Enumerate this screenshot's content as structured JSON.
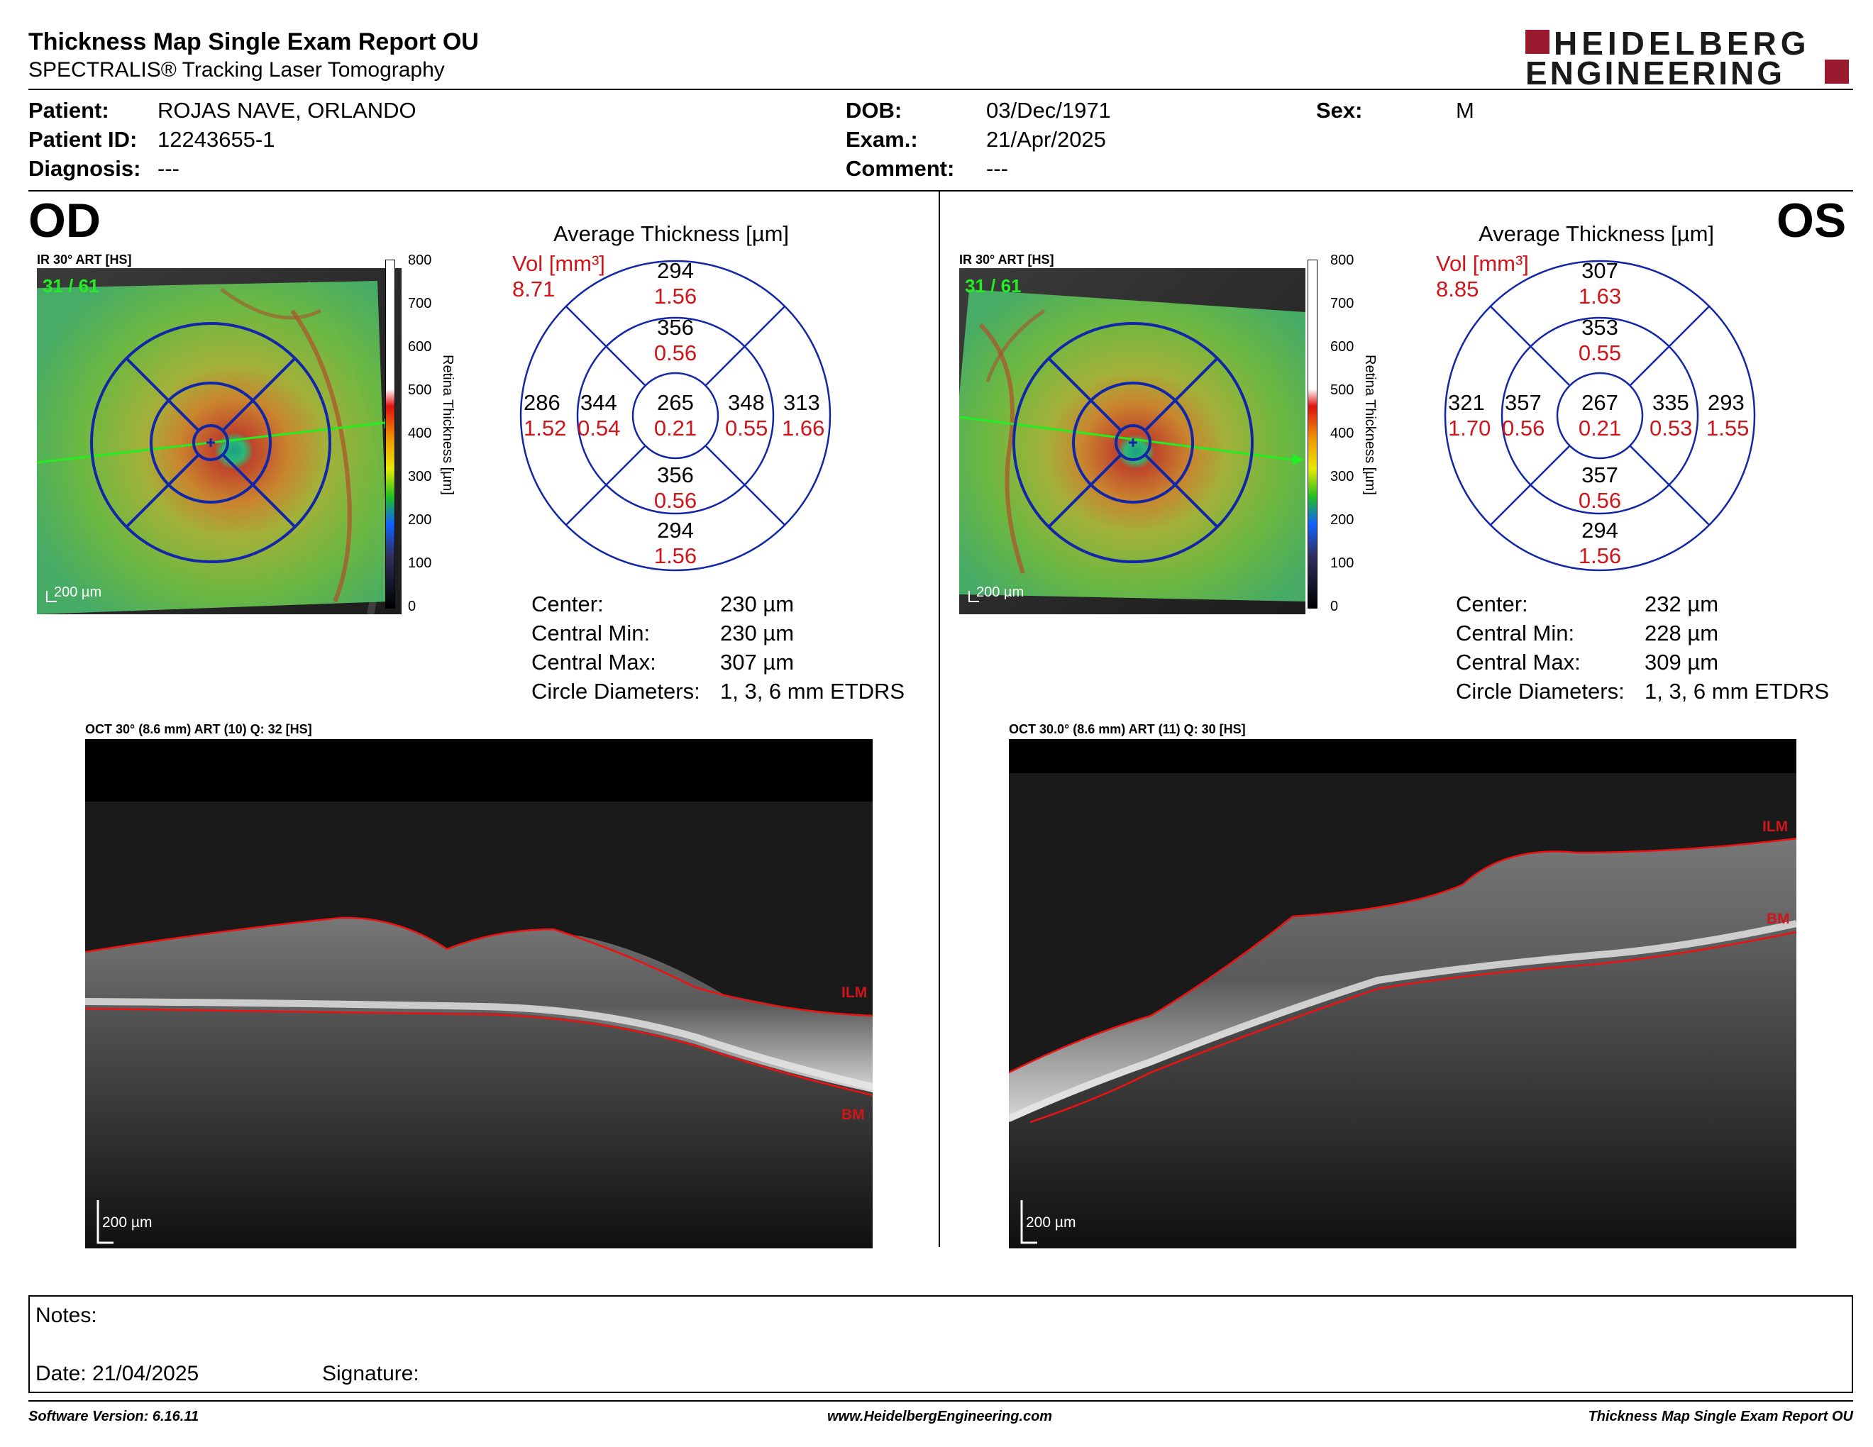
{
  "report": {
    "title": "Thickness Map Single Exam Report OU",
    "subtitle": "SPECTRALIS® Tracking Laser Tomography",
    "logo_line1": "HEIDELBERG",
    "logo_line2": "ENGINEERING",
    "brand_color": "#9a1b2f"
  },
  "patient": {
    "patient_label": "Patient:",
    "patient_value": "ROJAS NAVE, ORLANDO",
    "id_label": "Patient ID:",
    "id_value": "12243655-1",
    "diagnosis_label": "Diagnosis:",
    "diagnosis_value": "---",
    "dob_label": "DOB:",
    "dob_value": "03/Dec/1971",
    "exam_label": "Exam.:",
    "exam_value": "21/Apr/2025",
    "comment_label": "Comment:",
    "comment_value": "---",
    "sex_label": "Sex:",
    "sex_value": "M"
  },
  "colorbar": {
    "ticks": [
      "800",
      "700",
      "600",
      "500",
      "400",
      "300",
      "200",
      "100",
      "0"
    ],
    "label": "Retina Thickness [µm]"
  },
  "od": {
    "eye": "OD",
    "ir_label": "IR 30° ART [HS]",
    "frame_count": "31 / 61",
    "scale": "200 µm",
    "grid_title": "Average Thickness [µm]",
    "vol_label": "Vol [mm³]",
    "vol_value": "8.71",
    "grid": {
      "center_t": "265",
      "center_v": "0.21",
      "inner_sup_t": "356",
      "inner_sup_v": "0.56",
      "inner_inf_t": "356",
      "inner_inf_v": "0.56",
      "inner_left_t": "344",
      "inner_left_v": "0.54",
      "inner_right_t": "348",
      "inner_right_v": "0.55",
      "outer_sup_t": "294",
      "outer_sup_v": "1.56",
      "outer_inf_t": "294",
      "outer_inf_v": "1.56",
      "outer_left_t": "286",
      "outer_left_v": "1.52",
      "outer_right_t": "313",
      "outer_right_v": "1.66"
    },
    "stats": {
      "center_label": "Center:",
      "center_value": "230 µm",
      "min_label": "Central Min:",
      "min_value": "230 µm",
      "max_label": "Central Max:",
      "max_value": "307 µm",
      "diam_label": "Circle Diameters:",
      "diam_value": "1, 3, 6 mm ETDRS"
    },
    "oct_label": "OCT 30° (8.6 mm) ART (10) Q: 32 [HS]",
    "ilm": "ILM",
    "bm": "BM",
    "oct_scale": "200 µm"
  },
  "os": {
    "eye": "OS",
    "ir_label": "IR 30° ART [HS]",
    "frame_count": "31 / 61",
    "scale": "200 µm",
    "grid_title": "Average Thickness [µm]",
    "vol_label": "Vol [mm³]",
    "vol_value": "8.85",
    "grid": {
      "center_t": "267",
      "center_v": "0.21",
      "inner_sup_t": "353",
      "inner_sup_v": "0.55",
      "inner_inf_t": "357",
      "inner_inf_v": "0.56",
      "inner_left_t": "357",
      "inner_left_v": "0.56",
      "inner_right_t": "335",
      "inner_right_v": "0.53",
      "outer_sup_t": "307",
      "outer_sup_v": "1.63",
      "outer_inf_t": "294",
      "outer_inf_v": "1.56",
      "outer_left_t": "321",
      "outer_left_v": "1.70",
      "outer_right_t": "293",
      "outer_right_v": "1.55"
    },
    "stats": {
      "center_label": "Center:",
      "center_value": "232 µm",
      "min_label": "Central Min:",
      "min_value": "228 µm",
      "max_label": "Central Max:",
      "max_value": "309 µm",
      "diam_label": "Circle Diameters:",
      "diam_value": "1, 3, 6 mm ETDRS"
    },
    "oct_label": "OCT 30.0° (8.6 mm) ART (11) Q: 30 [HS]",
    "ilm": "ILM",
    "bm": "BM",
    "oct_scale": "200 µm"
  },
  "notes": {
    "notes_label": "Notes:",
    "date_label": "Date: 21/04/2025",
    "signature_label": "Signature:"
  },
  "footer": {
    "software": "Software Version: 6.16.11",
    "website": "www.HeidelbergEngineering.com",
    "report_name": "Thickness Map Single Exam Report OU"
  }
}
